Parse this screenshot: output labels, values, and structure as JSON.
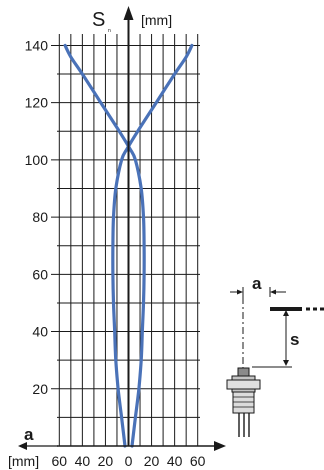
{
  "chart_data": {
    "type": "line",
    "title": "",
    "y_axis_symbol": "S",
    "y_axis_subscript": "n",
    "y_axis_unit": "[mm]",
    "x_axis_symbol": "a",
    "x_axis_unit": "[mm]",
    "x_tick_labels": [
      "60",
      "40",
      "20",
      "0",
      "20",
      "40",
      "60"
    ],
    "x_ticks": [
      -60,
      -40,
      -20,
      0,
      20,
      40,
      60
    ],
    "y_ticks": [
      20,
      40,
      60,
      80,
      100,
      120,
      140
    ],
    "xlim": [
      -62,
      62
    ],
    "ylim": [
      0,
      144
    ],
    "grid": true,
    "series": [
      {
        "color": "#4a72b8",
        "points": [
          [
            3,
            0
          ],
          [
            6,
            10
          ],
          [
            9,
            20
          ],
          [
            11,
            30
          ],
          [
            12,
            40
          ],
          [
            13,
            50
          ],
          [
            13.5,
            60
          ],
          [
            13.5,
            70
          ],
          [
            13,
            80
          ],
          [
            11,
            90
          ],
          [
            6,
            100
          ],
          [
            1,
            104
          ],
          [
            -8,
            110
          ],
          [
            -24,
            120
          ],
          [
            -40,
            130
          ],
          [
            -50,
            136
          ],
          [
            -55,
            140
          ]
        ]
      },
      {
        "color": "#4a72b8",
        "points": [
          [
            -3,
            0
          ],
          [
            -6,
            10
          ],
          [
            -9,
            20
          ],
          [
            -11,
            30
          ],
          [
            -12,
            40
          ],
          [
            -13,
            50
          ],
          [
            -13.5,
            60
          ],
          [
            -13.5,
            70
          ],
          [
            -13,
            80
          ],
          [
            -11,
            90
          ],
          [
            -6,
            100
          ],
          [
            -1,
            104
          ],
          [
            8,
            110
          ],
          [
            24,
            120
          ],
          [
            40,
            130
          ],
          [
            50,
            136
          ],
          [
            55,
            140
          ]
        ]
      }
    ]
  },
  "inset": {
    "a_label": "a",
    "s_label": "s"
  },
  "colors": {
    "curve": "#4a72b8",
    "grid": "#1a1a1a",
    "axis": "#1a1a1a"
  }
}
